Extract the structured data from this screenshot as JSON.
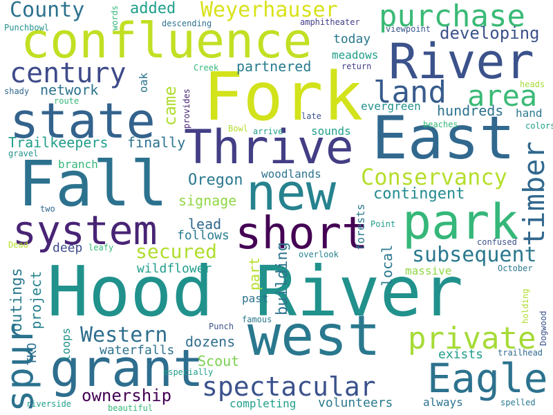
{
  "words": {
    "hood_river": "Hood River",
    "fork": "Fork",
    "fall": "Fall",
    "east": "East",
    "new": "new",
    "confluence": "confluence",
    "river": "River",
    "thrive": "Thrive",
    "west": "west",
    "state": "state",
    "grant": "grant",
    "park": "park",
    "short": "short",
    "system": "system",
    "spur": "spur",
    "eagle": "Eagle",
    "purchase": "purchase",
    "century": "century",
    "land": "land",
    "area": "area",
    "timber": "timber",
    "private": "private",
    "spectacular": "spectacular",
    "conservancy": "Conservancy",
    "subsequent": "subsequent",
    "weyerhauser": "Weyerhauser",
    "county": "County",
    "western": "Western",
    "secured": "secured",
    "ownership": "ownership",
    "developing": "developing",
    "trailkeepers": "Trailkeepers",
    "finally": "finally",
    "partnered": "partnered",
    "contingent": "contingent",
    "network": "network",
    "added": "added",
    "came": "came",
    "oregon": "Oregon",
    "hundreds": "hundreds",
    "signage": "signage",
    "dozens": "dozens",
    "scout": "Scout",
    "lead": "lead",
    "follows": "follows",
    "deep": "deep",
    "building": "building",
    "outings": "outings",
    "project": "project",
    "waterfalls": "waterfalls",
    "volunteers": "volunteers",
    "completing": "completing",
    "exists": "exists",
    "part": "part",
    "local": "local",
    "wildflower": "wildflower",
    "today": "today",
    "meadows": "meadows",
    "evergreen": "evergreen",
    "sounds": "sounds",
    "woodlands": "woodlands",
    "forests": "forests",
    "branch": "branch",
    "massive": "massive",
    "tko": "TKO",
    "loops": "loops",
    "past": "past",
    "always": "always",
    "oak": "oak",
    "hand": "hand",
    "punchbowl": "Punchbowl",
    "descending": "descending",
    "amphitheater": "amphitheater",
    "viewpoint": "viewpoint",
    "words": "words",
    "creek": "Creek",
    "return": "return",
    "heads": "heads",
    "shady": "shady",
    "route": "route",
    "provides": "provides",
    "late": "late",
    "colors": "colors",
    "bowl": "Bowl",
    "arrive": "arrive",
    "beaches": "beaches",
    "gravel": "gravel",
    "two": "two",
    "point": "Point",
    "confused": "confused",
    "dead": "Dead",
    "leafy": "leafy",
    "overlook": "overlook",
    "october": "October",
    "famous": "famous",
    "punch": "Punch",
    "holding": "holding",
    "dogwood": "Dogwood",
    "trailhead": "trailhead",
    "especially": "especially",
    "riverside": "riverside",
    "beautiful": "beautiful",
    "spelled": "spelled"
  }
}
